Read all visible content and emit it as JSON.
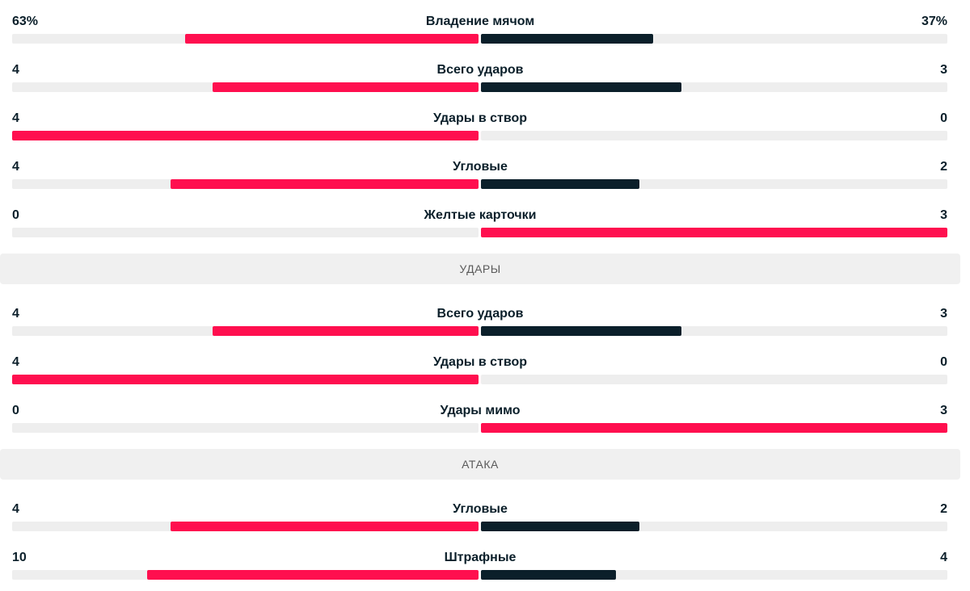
{
  "colors": {
    "leader": "#ff0f4f",
    "trailer": "#0b1f2a",
    "track": "#eeeeee"
  },
  "groups": [
    {
      "title": "",
      "rows": [
        {
          "label": "Владение мячом",
          "home": "63%",
          "away": "37%",
          "home_share": 0.63,
          "away_share": 0.37
        },
        {
          "label": "Всего ударов",
          "home": "4",
          "away": "3",
          "home_share": 0.57,
          "away_share": 0.43
        },
        {
          "label": "Удары в створ",
          "home": "4",
          "away": "0",
          "home_share": 1.0,
          "away_share": 0.0
        },
        {
          "label": "Угловые",
          "home": "4",
          "away": "2",
          "home_share": 0.66,
          "away_share": 0.34
        },
        {
          "label": "Желтые карточки",
          "home": "0",
          "away": "3",
          "home_share": 0.0,
          "away_share": 1.0
        }
      ]
    },
    {
      "title": "УДАРЫ",
      "rows": [
        {
          "label": "Всего ударов",
          "home": "4",
          "away": "3",
          "home_share": 0.57,
          "away_share": 0.43
        },
        {
          "label": "Удары в створ",
          "home": "4",
          "away": "0",
          "home_share": 1.0,
          "away_share": 0.0
        },
        {
          "label": "Удары мимо",
          "home": "0",
          "away": "3",
          "home_share": 0.0,
          "away_share": 1.0
        }
      ]
    },
    {
      "title": "АТАКА",
      "rows": [
        {
          "label": "Угловые",
          "home": "4",
          "away": "2",
          "home_share": 0.66,
          "away_share": 0.34
        },
        {
          "label": "Штрафные",
          "home": "10",
          "away": "4",
          "home_share": 0.71,
          "away_share": 0.29
        }
      ]
    }
  ]
}
